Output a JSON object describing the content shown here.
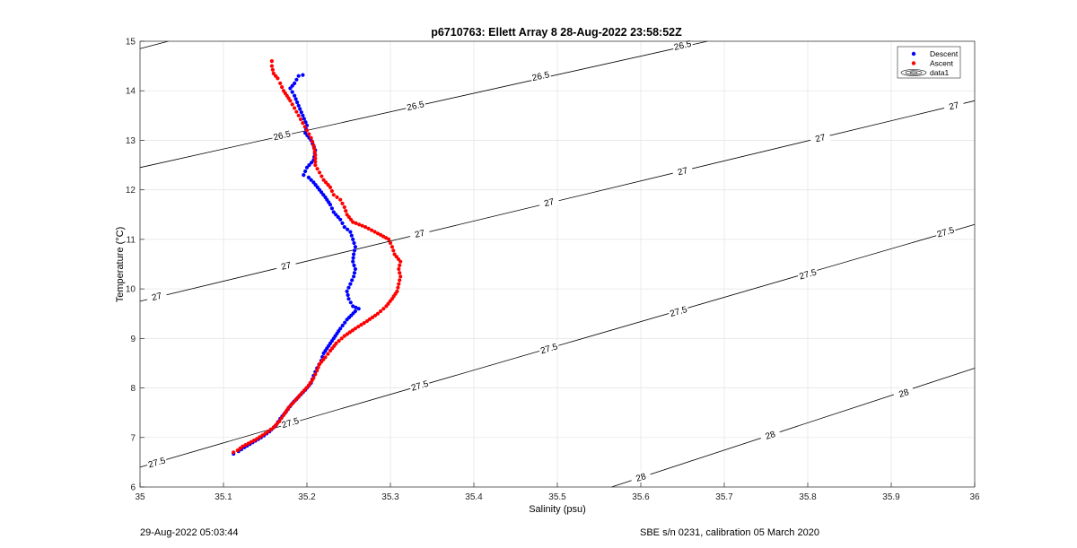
{
  "footer": {
    "timestamp": "29-Aug-2022 05:03:44",
    "calibration": "SBE s/n 0231, calibration 05 March 2020"
  },
  "chart_data": {
    "type": "scatter",
    "title": "p6710763: Ellett Array 8 28-Aug-2022 23:58:52Z",
    "xlabel": "Salinity (psu)",
    "ylabel": "Temperature (°C)",
    "xlim": [
      35,
      36
    ],
    "ylim": [
      6,
      15
    ],
    "xticks": [
      35,
      35.1,
      35.2,
      35.3,
      35.4,
      35.5,
      35.6,
      35.7,
      35.8,
      35.9,
      36
    ],
    "xtick_labels": [
      "35",
      "35.1",
      "35.2",
      "35.3",
      "35.4",
      "35.5",
      "35.6",
      "35.7",
      "35.8",
      "35.9",
      "36"
    ],
    "yticks": [
      6,
      7,
      8,
      9,
      10,
      11,
      12,
      13,
      14,
      15
    ],
    "ytick_labels": [
      "6",
      "7",
      "8",
      "9",
      "10",
      "11",
      "12",
      "13",
      "14",
      "15"
    ],
    "grid": true,
    "legend": {
      "position": "top-right",
      "entries": [
        {
          "label": "Descent",
          "color": "#0000ff",
          "marker": "dot"
        },
        {
          "label": "Ascent",
          "color": "#ff0000",
          "marker": "dot"
        },
        {
          "label": "data1",
          "color": "#000000",
          "marker": "contour"
        }
      ]
    },
    "series": [
      {
        "name": "Descent",
        "color": "#0000ff",
        "points": [
          [
            35.112,
            6.67
          ],
          [
            35.118,
            6.72
          ],
          [
            35.125,
            6.8
          ],
          [
            35.135,
            6.9
          ],
          [
            35.145,
            7.0
          ],
          [
            35.155,
            7.12
          ],
          [
            35.163,
            7.25
          ],
          [
            35.168,
            7.38
          ],
          [
            35.175,
            7.52
          ],
          [
            35.182,
            7.68
          ],
          [
            35.19,
            7.82
          ],
          [
            35.198,
            7.96
          ],
          [
            35.205,
            8.1
          ],
          [
            35.208,
            8.25
          ],
          [
            35.212,
            8.4
          ],
          [
            35.217,
            8.55
          ],
          [
            35.22,
            8.7
          ],
          [
            35.226,
            8.85
          ],
          [
            35.232,
            9.0
          ],
          [
            35.24,
            9.2
          ],
          [
            35.248,
            9.38
          ],
          [
            35.258,
            9.55
          ],
          [
            35.262,
            9.6
          ],
          [
            35.255,
            9.65
          ],
          [
            35.25,
            9.8
          ],
          [
            35.248,
            9.95
          ],
          [
            35.252,
            10.1
          ],
          [
            35.256,
            10.25
          ],
          [
            35.258,
            10.4
          ],
          [
            35.255,
            10.55
          ],
          [
            35.256,
            10.7
          ],
          [
            35.258,
            10.85
          ],
          [
            35.255,
            11.0
          ],
          [
            35.252,
            11.15
          ],
          [
            35.245,
            11.25
          ],
          [
            35.24,
            11.4
          ],
          [
            35.232,
            11.55
          ],
          [
            35.228,
            11.7
          ],
          [
            35.222,
            11.85
          ],
          [
            35.215,
            12.0
          ],
          [
            35.208,
            12.15
          ],
          [
            35.202,
            12.25
          ],
          [
            35.196,
            12.3
          ],
          [
            35.2,
            12.45
          ],
          [
            35.208,
            12.6
          ],
          [
            35.21,
            12.8
          ],
          [
            35.205,
            13.0
          ],
          [
            35.198,
            13.15
          ],
          [
            35.2,
            13.3
          ],
          [
            35.195,
            13.5
          ],
          [
            35.19,
            13.7
          ],
          [
            35.185,
            13.9
          ],
          [
            35.18,
            14.05
          ],
          [
            35.185,
            14.15
          ],
          [
            35.19,
            14.3
          ],
          [
            35.195,
            14.32
          ]
        ]
      },
      {
        "name": "Ascent",
        "color": "#ff0000",
        "points": [
          [
            35.112,
            6.7
          ],
          [
            35.117,
            6.74
          ],
          [
            35.123,
            6.82
          ],
          [
            35.13,
            6.88
          ],
          [
            35.14,
            6.97
          ],
          [
            35.15,
            7.08
          ],
          [
            35.16,
            7.2
          ],
          [
            35.167,
            7.33
          ],
          [
            35.172,
            7.45
          ],
          [
            35.178,
            7.6
          ],
          [
            35.186,
            7.75
          ],
          [
            35.194,
            7.9
          ],
          [
            35.202,
            8.05
          ],
          [
            35.208,
            8.2
          ],
          [
            35.212,
            8.35
          ],
          [
            35.215,
            8.48
          ],
          [
            35.222,
            8.62
          ],
          [
            35.228,
            8.75
          ],
          [
            35.235,
            8.9
          ],
          [
            35.245,
            9.05
          ],
          [
            35.258,
            9.2
          ],
          [
            35.272,
            9.35
          ],
          [
            35.285,
            9.5
          ],
          [
            35.295,
            9.65
          ],
          [
            35.302,
            9.8
          ],
          [
            35.308,
            9.95
          ],
          [
            35.31,
            10.1
          ],
          [
            35.312,
            10.25
          ],
          [
            35.31,
            10.4
          ],
          [
            35.312,
            10.55
          ],
          [
            35.305,
            10.7
          ],
          [
            35.302,
            10.85
          ],
          [
            35.298,
            11.0
          ],
          [
            35.285,
            11.12
          ],
          [
            35.27,
            11.25
          ],
          [
            35.255,
            11.35
          ],
          [
            35.248,
            11.5
          ],
          [
            35.245,
            11.65
          ],
          [
            35.24,
            11.8
          ],
          [
            35.232,
            11.9
          ],
          [
            35.228,
            12.05
          ],
          [
            35.22,
            12.2
          ],
          [
            35.215,
            12.35
          ],
          [
            35.21,
            12.5
          ],
          [
            35.21,
            12.7
          ],
          [
            35.208,
            12.9
          ],
          [
            35.205,
            13.05
          ],
          [
            35.2,
            13.2
          ],
          [
            35.195,
            13.35
          ],
          [
            35.19,
            13.5
          ],
          [
            35.185,
            13.65
          ],
          [
            35.18,
            13.8
          ],
          [
            35.172,
            14.0
          ],
          [
            35.168,
            14.15
          ],
          [
            35.165,
            14.25
          ],
          [
            35.16,
            14.35
          ],
          [
            35.158,
            14.5
          ],
          [
            35.158,
            14.6
          ]
        ]
      }
    ],
    "contours": [
      {
        "level": "26.5",
        "lines": [
          [
            [
              35,
              14.85
            ],
            [
              35.034,
              15
            ]
          ],
          [
            [
              35,
              12.45
            ],
            [
              35.68,
              15
            ]
          ]
        ],
        "labels": [
          [
            35.17,
            13.1
          ],
          [
            35.33,
            13.7
          ],
          [
            35.48,
            14.3
          ],
          [
            35.65,
            14.92
          ]
        ]
      },
      {
        "level": "27",
        "lines": [
          [
            [
              35,
              9.75
            ],
            [
              36,
              13.8
            ]
          ]
        ],
        "labels": [
          [
            35.02,
            9.85
          ],
          [
            35.175,
            10.47
          ],
          [
            35.335,
            11.12
          ],
          [
            35.49,
            11.75
          ],
          [
            35.65,
            12.38
          ],
          [
            35.815,
            13.05
          ],
          [
            35.975,
            13.7
          ]
        ]
      },
      {
        "level": "27.5",
        "lines": [
          [
            [
              35,
              6.4
            ],
            [
              36,
              11.3
            ]
          ]
        ],
        "labels": [
          [
            35.02,
            6.5
          ],
          [
            35.18,
            7.3
          ],
          [
            35.335,
            8.05
          ],
          [
            35.49,
            8.8
          ],
          [
            35.645,
            9.55
          ],
          [
            35.8,
            10.3
          ],
          [
            35.965,
            11.15
          ]
        ]
      },
      {
        "level": "28",
        "lines": [
          [
            [
              35.565,
              6
            ],
            [
              36,
              8.4
            ]
          ]
        ],
        "labels": [
          [
            35.6,
            6.2
          ],
          [
            35.755,
            7.05
          ],
          [
            35.915,
            7.9
          ]
        ]
      }
    ]
  }
}
